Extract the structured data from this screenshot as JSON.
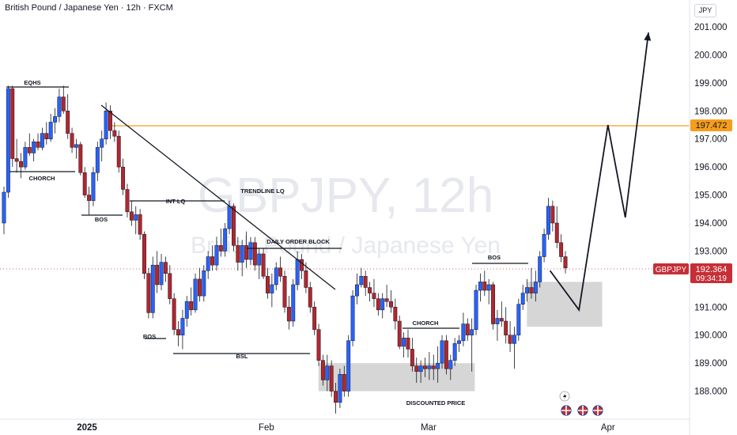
{
  "header": {
    "title": "British Pound / Japanese Yen · 12h · FXCM"
  },
  "watermark": {
    "symbol": "GBPJPY, 12h",
    "name": "British Pound / Japanese Yen"
  },
  "axis": {
    "unit": "JPY"
  },
  "price_tag": {
    "symbol": "GBPJPY",
    "price": "192.364",
    "countdown": "09:34:19",
    "color": "#c62f37"
  },
  "level_tag": {
    "price": "197.472",
    "color": "#f59d1c"
  },
  "colors": {
    "up": "#2962ff",
    "down": "#b3262e",
    "level": "#f59d1c",
    "zone": "#cfcfcf"
  },
  "chart_data": {
    "type": "candlestick",
    "symbol": "GBPJPY",
    "timeframe": "12h",
    "y_axis": {
      "range": [
        187.0,
        201.7
      ],
      "ticks": [
        "188.000",
        "189.000",
        "190.000",
        "191.000",
        "192.000",
        "193.000",
        "194.000",
        "195.000",
        "196.000",
        "197.000",
        "198.000",
        "199.000",
        "200.000",
        "201.000"
      ]
    },
    "x_axis": {
      "labels": [
        "2025",
        "Feb",
        "Mar",
        "Apr"
      ],
      "label_dates": [
        "2025-01-01",
        "2025-02-01",
        "2025-03-01",
        "2025-04-01"
      ]
    },
    "level_line": 197.472,
    "last_price": 192.364,
    "annotations": [
      "EQHS",
      "CHORCH",
      "BOS",
      "INT LQ",
      "TRENDLINE LQ",
      "DAILY ORDER BLOCK",
      "BOS",
      "BSL",
      "CHORCH",
      "DISCOUNTED PRICE",
      "BOS"
    ],
    "zones": [
      {
        "from_date": "2025-02-10",
        "to_date": "2025-03-09",
        "low": 188.0,
        "high": 189.0
      },
      {
        "from_date": "2025-03-18",
        "to_date": "2025-03-31",
        "low": 190.3,
        "high": 191.9
      }
    ],
    "projection": [
      {
        "date": "2025-03-22",
        "price": 192.3
      },
      {
        "date": "2025-03-27",
        "price": 190.9
      },
      {
        "date": "2025-04-01",
        "price": 197.5
      },
      {
        "date": "2025-04-04",
        "price": 194.2
      },
      {
        "date": "2025-04-08",
        "price": 200.8
      }
    ],
    "candles": [
      {
        "date": "2024-12-18",
        "o": 194.0,
        "h": 195.3,
        "l": 193.6,
        "c": 195.1
      },
      {
        "date": "2024-12-18",
        "o": 195.1,
        "h": 198.9,
        "l": 194.9,
        "c": 198.8
      },
      {
        "date": "2024-12-19",
        "o": 198.8,
        "h": 198.9,
        "l": 196.0,
        "c": 196.3
      },
      {
        "date": "2024-12-19",
        "o": 196.3,
        "h": 197.0,
        "l": 195.8,
        "c": 196.2
      },
      {
        "date": "2024-12-20",
        "o": 196.2,
        "h": 196.5,
        "l": 195.6,
        "c": 196.0
      },
      {
        "date": "2024-12-20",
        "o": 196.0,
        "h": 196.9,
        "l": 195.9,
        "c": 196.7
      },
      {
        "date": "2024-12-23",
        "o": 196.7,
        "h": 197.2,
        "l": 196.4,
        "c": 196.5
      },
      {
        "date": "2024-12-23",
        "o": 196.5,
        "h": 197.0,
        "l": 196.2,
        "c": 196.9
      },
      {
        "date": "2024-12-24",
        "o": 196.9,
        "h": 197.2,
        "l": 196.6,
        "c": 196.7
      },
      {
        "date": "2024-12-24",
        "o": 196.7,
        "h": 197.4,
        "l": 196.6,
        "c": 197.2
      },
      {
        "date": "2024-12-25",
        "o": 197.2,
        "h": 197.6,
        "l": 196.8,
        "c": 197.0
      },
      {
        "date": "2024-12-25",
        "o": 197.0,
        "h": 197.9,
        "l": 196.9,
        "c": 197.6
      },
      {
        "date": "2024-12-26",
        "o": 197.6,
        "h": 198.1,
        "l": 197.2,
        "c": 197.8
      },
      {
        "date": "2024-12-26",
        "o": 197.8,
        "h": 198.8,
        "l": 197.6,
        "c": 198.5
      },
      {
        "date": "2024-12-27",
        "o": 198.5,
        "h": 198.9,
        "l": 197.9,
        "c": 198.0
      },
      {
        "date": "2024-12-27",
        "o": 198.0,
        "h": 198.6,
        "l": 197.0,
        "c": 197.2
      },
      {
        "date": "2024-12-30",
        "o": 197.2,
        "h": 197.4,
        "l": 196.5,
        "c": 196.7
      },
      {
        "date": "2024-12-30",
        "o": 196.7,
        "h": 197.0,
        "l": 196.3,
        "c": 196.8
      },
      {
        "date": "2024-12-31",
        "o": 196.8,
        "h": 196.9,
        "l": 195.7,
        "c": 195.8
      },
      {
        "date": "2024-12-31",
        "o": 195.8,
        "h": 196.0,
        "l": 194.9,
        "c": 195.0
      },
      {
        "date": "2025-01-01",
        "o": 195.0,
        "h": 195.3,
        "l": 194.3,
        "c": 194.8
      },
      {
        "date": "2025-01-01",
        "o": 194.8,
        "h": 196.0,
        "l": 194.6,
        "c": 195.8
      },
      {
        "date": "2025-01-02",
        "o": 195.8,
        "h": 196.9,
        "l": 195.5,
        "c": 196.7
      },
      {
        "date": "2025-01-02",
        "o": 196.7,
        "h": 197.3,
        "l": 196.2,
        "c": 197.0
      },
      {
        "date": "2025-01-03",
        "o": 197.0,
        "h": 198.3,
        "l": 196.8,
        "c": 198.0
      },
      {
        "date": "2025-01-03",
        "o": 198.0,
        "h": 198.2,
        "l": 197.0,
        "c": 197.3
      },
      {
        "date": "2025-01-06",
        "o": 197.3,
        "h": 197.6,
        "l": 196.9,
        "c": 197.1
      },
      {
        "date": "2025-01-06",
        "o": 197.1,
        "h": 197.3,
        "l": 195.8,
        "c": 196.0
      },
      {
        "date": "2025-01-07",
        "o": 196.0,
        "h": 196.3,
        "l": 195.0,
        "c": 195.2
      },
      {
        "date": "2025-01-07",
        "o": 195.2,
        "h": 195.4,
        "l": 194.2,
        "c": 194.4
      },
      {
        "date": "2025-01-08",
        "o": 194.4,
        "h": 194.8,
        "l": 193.9,
        "c": 194.1
      },
      {
        "date": "2025-01-08",
        "o": 194.1,
        "h": 194.6,
        "l": 193.6,
        "c": 194.3
      },
      {
        "date": "2025-01-09",
        "o": 194.3,
        "h": 194.5,
        "l": 193.4,
        "c": 193.6
      },
      {
        "date": "2025-01-09",
        "o": 193.6,
        "h": 193.7,
        "l": 192.0,
        "c": 192.2
      },
      {
        "date": "2025-01-10",
        "o": 192.2,
        "h": 192.4,
        "l": 190.6,
        "c": 190.8
      },
      {
        "date": "2025-01-10",
        "o": 190.8,
        "h": 192.8,
        "l": 190.6,
        "c": 192.5
      },
      {
        "date": "2025-01-13",
        "o": 192.5,
        "h": 193.0,
        "l": 191.5,
        "c": 191.8
      },
      {
        "date": "2025-01-13",
        "o": 191.8,
        "h": 192.9,
        "l": 191.6,
        "c": 192.6
      },
      {
        "date": "2025-01-14",
        "o": 192.6,
        "h": 192.8,
        "l": 191.9,
        "c": 192.2
      },
      {
        "date": "2025-01-14",
        "o": 192.2,
        "h": 192.5,
        "l": 191.1,
        "c": 191.3
      },
      {
        "date": "2025-01-15",
        "o": 191.3,
        "h": 191.5,
        "l": 190.0,
        "c": 190.2
      },
      {
        "date": "2025-01-15",
        "o": 190.2,
        "h": 190.5,
        "l": 189.6,
        "c": 190.0
      },
      {
        "date": "2025-01-16",
        "o": 190.0,
        "h": 190.9,
        "l": 189.5,
        "c": 190.6
      },
      {
        "date": "2025-01-16",
        "o": 190.6,
        "h": 191.4,
        "l": 190.3,
        "c": 191.2
      },
      {
        "date": "2025-01-17",
        "o": 191.2,
        "h": 191.7,
        "l": 190.7,
        "c": 190.9
      },
      {
        "date": "2025-01-17",
        "o": 190.9,
        "h": 192.2,
        "l": 190.8,
        "c": 192.0
      },
      {
        "date": "2025-01-20",
        "o": 192.0,
        "h": 192.4,
        "l": 191.2,
        "c": 191.4
      },
      {
        "date": "2025-01-20",
        "o": 191.4,
        "h": 192.5,
        "l": 191.2,
        "c": 192.3
      },
      {
        "date": "2025-01-21",
        "o": 192.3,
        "h": 193.0,
        "l": 192.0,
        "c": 192.8
      },
      {
        "date": "2025-01-21",
        "o": 192.8,
        "h": 193.2,
        "l": 192.3,
        "c": 192.5
      },
      {
        "date": "2025-01-22",
        "o": 192.5,
        "h": 193.5,
        "l": 192.3,
        "c": 193.2
      },
      {
        "date": "2025-01-22",
        "o": 193.2,
        "h": 193.8,
        "l": 192.8,
        "c": 193.0
      },
      {
        "date": "2025-01-23",
        "o": 193.0,
        "h": 194.0,
        "l": 192.8,
        "c": 193.8
      },
      {
        "date": "2025-01-23",
        "o": 193.8,
        "h": 194.8,
        "l": 193.6,
        "c": 194.6
      },
      {
        "date": "2025-01-24",
        "o": 194.6,
        "h": 194.7,
        "l": 193.0,
        "c": 193.2
      },
      {
        "date": "2025-01-24",
        "o": 193.2,
        "h": 193.5,
        "l": 192.3,
        "c": 192.6
      },
      {
        "date": "2025-01-27",
        "o": 192.6,
        "h": 193.4,
        "l": 192.1,
        "c": 193.2
      },
      {
        "date": "2025-01-27",
        "o": 193.2,
        "h": 193.7,
        "l": 192.4,
        "c": 192.7
      },
      {
        "date": "2025-01-28",
        "o": 192.7,
        "h": 193.5,
        "l": 192.5,
        "c": 193.3
      },
      {
        "date": "2025-01-28",
        "o": 193.3,
        "h": 193.5,
        "l": 192.3,
        "c": 192.5
      },
      {
        "date": "2025-01-29",
        "o": 192.5,
        "h": 193.1,
        "l": 192.0,
        "c": 192.9
      },
      {
        "date": "2025-01-29",
        "o": 192.9,
        "h": 193.1,
        "l": 192.0,
        "c": 192.1
      },
      {
        "date": "2025-01-30",
        "o": 192.1,
        "h": 192.4,
        "l": 191.3,
        "c": 191.5
      },
      {
        "date": "2025-01-30",
        "o": 191.5,
        "h": 192.2,
        "l": 191.0,
        "c": 191.8
      },
      {
        "date": "2025-01-31",
        "o": 191.8,
        "h": 192.6,
        "l": 191.6,
        "c": 192.4
      },
      {
        "date": "2025-01-31",
        "o": 192.4,
        "h": 192.8,
        "l": 191.9,
        "c": 192.1
      },
      {
        "date": "2025-02-03",
        "o": 192.1,
        "h": 192.3,
        "l": 190.8,
        "c": 191.0
      },
      {
        "date": "2025-02-03",
        "o": 191.0,
        "h": 191.4,
        "l": 190.2,
        "c": 190.5
      },
      {
        "date": "2025-02-04",
        "o": 190.5,
        "h": 192.0,
        "l": 190.3,
        "c": 191.8
      },
      {
        "date": "2025-02-04",
        "o": 191.8,
        "h": 193.0,
        "l": 191.6,
        "c": 192.7
      },
      {
        "date": "2025-02-05",
        "o": 192.7,
        "h": 192.9,
        "l": 192.0,
        "c": 192.3
      },
      {
        "date": "2025-02-05",
        "o": 192.3,
        "h": 192.6,
        "l": 191.5,
        "c": 191.7
      },
      {
        "date": "2025-02-06",
        "o": 191.7,
        "h": 191.9,
        "l": 190.8,
        "c": 191.0
      },
      {
        "date": "2025-02-06",
        "o": 191.0,
        "h": 191.2,
        "l": 190.0,
        "c": 190.2
      },
      {
        "date": "2025-02-07",
        "o": 190.2,
        "h": 190.4,
        "l": 188.9,
        "c": 189.1
      },
      {
        "date": "2025-02-07",
        "o": 189.1,
        "h": 189.3,
        "l": 188.2,
        "c": 188.4
      },
      {
        "date": "2025-02-10",
        "o": 188.4,
        "h": 189.3,
        "l": 188.0,
        "c": 188.9
      },
      {
        "date": "2025-02-10",
        "o": 188.9,
        "h": 189.1,
        "l": 187.8,
        "c": 188.0
      },
      {
        "date": "2025-02-11",
        "o": 188.0,
        "h": 188.3,
        "l": 187.2,
        "c": 187.6
      },
      {
        "date": "2025-02-11",
        "o": 187.6,
        "h": 188.8,
        "l": 187.4,
        "c": 188.6
      },
      {
        "date": "2025-02-12",
        "o": 188.6,
        "h": 188.9,
        "l": 187.8,
        "c": 188.0
      },
      {
        "date": "2025-02-12",
        "o": 188.0,
        "h": 190.0,
        "l": 187.8,
        "c": 189.8
      },
      {
        "date": "2025-02-13",
        "o": 189.8,
        "h": 191.6,
        "l": 189.6,
        "c": 191.4
      },
      {
        "date": "2025-02-13",
        "o": 191.4,
        "h": 192.2,
        "l": 191.1,
        "c": 191.8
      },
      {
        "date": "2025-02-14",
        "o": 191.8,
        "h": 192.4,
        "l": 191.7,
        "c": 192.1
      },
      {
        "date": "2025-02-14",
        "o": 192.1,
        "h": 192.3,
        "l": 191.4,
        "c": 191.7
      },
      {
        "date": "2025-02-17",
        "o": 191.7,
        "h": 191.9,
        "l": 191.2,
        "c": 191.5
      },
      {
        "date": "2025-02-17",
        "o": 191.5,
        "h": 192.0,
        "l": 191.0,
        "c": 191.3
      },
      {
        "date": "2025-02-18",
        "o": 191.3,
        "h": 191.5,
        "l": 190.7,
        "c": 190.9
      },
      {
        "date": "2025-02-18",
        "o": 190.9,
        "h": 191.5,
        "l": 190.6,
        "c": 191.3
      },
      {
        "date": "2025-02-19",
        "o": 191.3,
        "h": 191.8,
        "l": 191.0,
        "c": 191.2
      },
      {
        "date": "2025-02-19",
        "o": 191.2,
        "h": 191.6,
        "l": 190.8,
        "c": 191.0
      },
      {
        "date": "2025-02-20",
        "o": 191.0,
        "h": 191.3,
        "l": 190.2,
        "c": 190.5
      },
      {
        "date": "2025-02-20",
        "o": 190.5,
        "h": 190.7,
        "l": 189.5,
        "c": 189.6
      },
      {
        "date": "2025-02-21",
        "o": 189.6,
        "h": 190.1,
        "l": 189.2,
        "c": 189.9
      },
      {
        "date": "2025-02-21",
        "o": 189.9,
        "h": 190.2,
        "l": 189.2,
        "c": 189.5
      },
      {
        "date": "2025-02-24",
        "o": 189.5,
        "h": 189.9,
        "l": 188.7,
        "c": 188.9
      },
      {
        "date": "2025-02-24",
        "o": 188.9,
        "h": 189.2,
        "l": 188.3,
        "c": 188.7
      },
      {
        "date": "2025-02-25",
        "o": 188.7,
        "h": 189.1,
        "l": 188.3,
        "c": 188.9
      },
      {
        "date": "2025-02-25",
        "o": 188.9,
        "h": 189.2,
        "l": 188.5,
        "c": 188.8
      },
      {
        "date": "2025-02-26",
        "o": 188.8,
        "h": 189.4,
        "l": 188.4,
        "c": 188.9
      },
      {
        "date": "2025-02-26",
        "o": 188.9,
        "h": 189.3,
        "l": 188.4,
        "c": 188.8
      },
      {
        "date": "2025-02-27",
        "o": 188.8,
        "h": 189.6,
        "l": 188.3,
        "c": 189.0
      },
      {
        "date": "2025-02-27",
        "o": 189.0,
        "h": 190.0,
        "l": 188.8,
        "c": 189.8
      },
      {
        "date": "2025-02-28",
        "o": 189.8,
        "h": 190.0,
        "l": 188.6,
        "c": 188.8
      },
      {
        "date": "2025-02-28",
        "o": 188.8,
        "h": 189.3,
        "l": 188.4,
        "c": 189.1
      },
      {
        "date": "2025-03-03",
        "o": 189.1,
        "h": 189.9,
        "l": 188.9,
        "c": 189.7
      },
      {
        "date": "2025-03-03",
        "o": 189.7,
        "h": 190.0,
        "l": 189.4,
        "c": 189.8
      },
      {
        "date": "2025-03-04",
        "o": 189.8,
        "h": 190.8,
        "l": 189.6,
        "c": 190.4
      },
      {
        "date": "2025-03-04",
        "o": 190.4,
        "h": 190.6,
        "l": 189.8,
        "c": 190.0
      },
      {
        "date": "2025-03-05",
        "o": 190.0,
        "h": 190.6,
        "l": 188.7,
        "c": 190.2
      },
      {
        "date": "2025-03-05",
        "o": 190.2,
        "h": 191.8,
        "l": 190.0,
        "c": 191.6
      },
      {
        "date": "2025-03-06",
        "o": 191.6,
        "h": 192.2,
        "l": 191.2,
        "c": 191.9
      },
      {
        "date": "2025-03-06",
        "o": 191.9,
        "h": 192.3,
        "l": 191.4,
        "c": 191.6
      },
      {
        "date": "2025-03-07",
        "o": 191.6,
        "h": 192.0,
        "l": 191.1,
        "c": 191.8
      },
      {
        "date": "2025-03-07",
        "o": 191.8,
        "h": 191.9,
        "l": 190.2,
        "c": 190.4
      },
      {
        "date": "2025-03-10",
        "o": 190.4,
        "h": 190.9,
        "l": 189.8,
        "c": 190.6
      },
      {
        "date": "2025-03-10",
        "o": 190.6,
        "h": 191.2,
        "l": 190.3,
        "c": 190.5
      },
      {
        "date": "2025-03-11",
        "o": 190.5,
        "h": 191.0,
        "l": 189.7,
        "c": 190.0
      },
      {
        "date": "2025-03-11",
        "o": 190.0,
        "h": 190.5,
        "l": 189.4,
        "c": 189.7
      },
      {
        "date": "2025-03-12",
        "o": 189.7,
        "h": 190.3,
        "l": 188.8,
        "c": 190.0
      },
      {
        "date": "2025-03-12",
        "o": 190.0,
        "h": 191.3,
        "l": 189.8,
        "c": 191.1
      },
      {
        "date": "2025-03-13",
        "o": 191.1,
        "h": 191.8,
        "l": 190.9,
        "c": 191.5
      },
      {
        "date": "2025-03-13",
        "o": 191.5,
        "h": 192.0,
        "l": 191.2,
        "c": 191.7
      },
      {
        "date": "2025-03-14",
        "o": 191.7,
        "h": 192.4,
        "l": 191.3,
        "c": 191.5
      },
      {
        "date": "2025-03-14",
        "o": 191.5,
        "h": 192.3,
        "l": 191.2,
        "c": 191.9
      },
      {
        "date": "2025-03-17",
        "o": 191.9,
        "h": 193.0,
        "l": 191.7,
        "c": 192.8
      },
      {
        "date": "2025-03-17",
        "o": 192.8,
        "h": 193.8,
        "l": 192.6,
        "c": 193.6
      },
      {
        "date": "2025-03-18",
        "o": 193.6,
        "h": 194.9,
        "l": 193.4,
        "c": 194.6
      },
      {
        "date": "2025-03-18",
        "o": 194.6,
        "h": 194.8,
        "l": 193.7,
        "c": 194.0
      },
      {
        "date": "2025-03-19",
        "o": 194.0,
        "h": 194.6,
        "l": 193.1,
        "c": 193.3
      },
      {
        "date": "2025-03-19",
        "o": 193.3,
        "h": 193.6,
        "l": 192.6,
        "c": 192.8
      },
      {
        "date": "2025-03-20",
        "o": 192.8,
        "h": 193.0,
        "l": 192.2,
        "c": 192.4
      }
    ]
  }
}
